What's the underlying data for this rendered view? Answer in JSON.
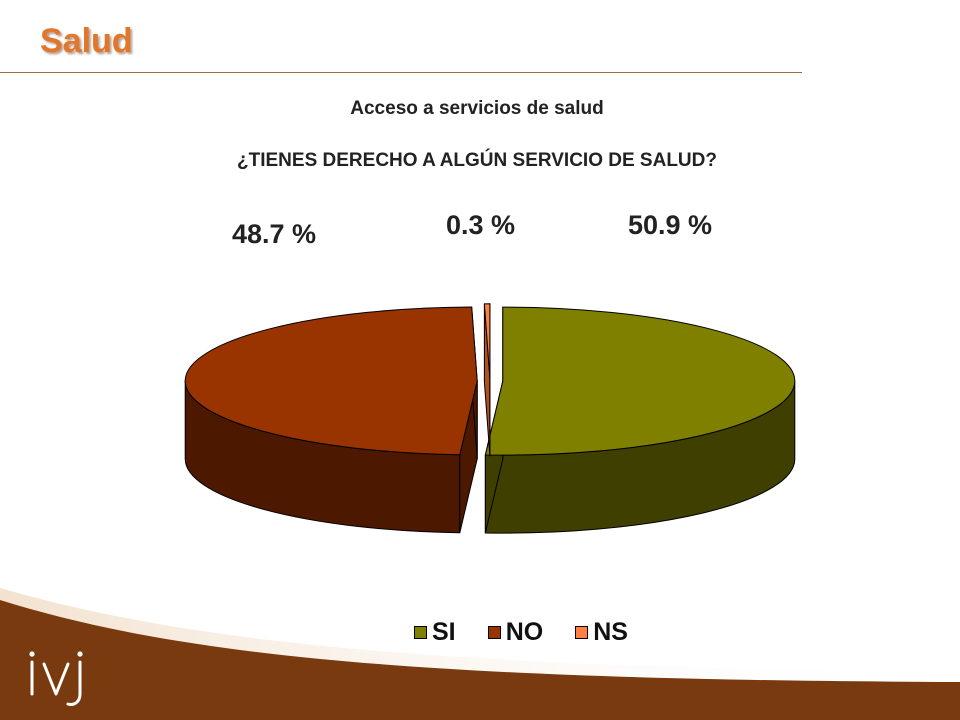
{
  "slide": {
    "title": "Salud"
  },
  "chart_data": {
    "type": "pie",
    "title": "Acceso a servicios de salud",
    "subtitle": "¿TIENES DERECHO A ALGÚN SERVICIO DE SALUD?",
    "categories": [
      "SI",
      "NO",
      "NS"
    ],
    "values": [
      50.9,
      48.7,
      0.3
    ],
    "value_labels": [
      "50.9 %",
      "48.7 %",
      "0.3 %"
    ],
    "colors": [
      "#808000",
      "#993300",
      "#ff8040"
    ],
    "side_colors": [
      "#3f4000",
      "#4c1800",
      "#b35020"
    ],
    "legend_position": "bottom",
    "three_d": true,
    "exploded": true
  },
  "branding": {
    "logo_text": "ivj",
    "footer_color": "#7a3a10"
  }
}
